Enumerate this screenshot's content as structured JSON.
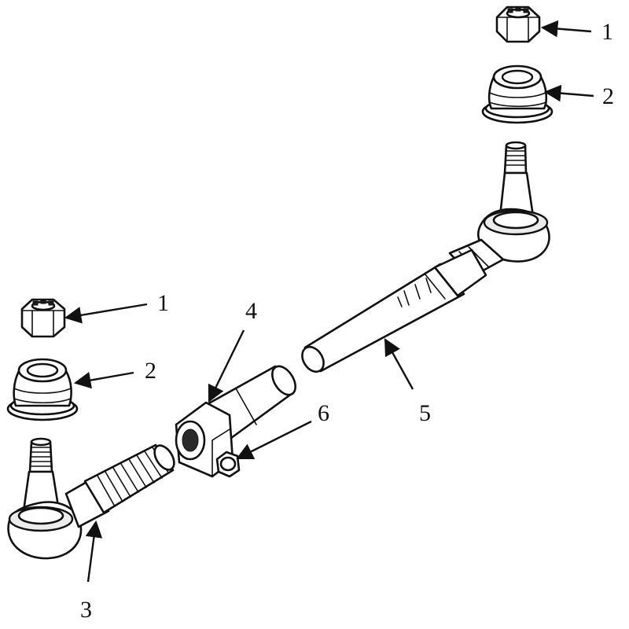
{
  "callouts": {
    "nut_right": "1",
    "boot_right": "2",
    "nut_left": "1",
    "boot_left": "2",
    "tie_rod_end_left": "3",
    "clamp": "4",
    "tube": "5",
    "bolt": "6"
  },
  "colors": {
    "line": "#111111",
    "background": "#ffffff"
  }
}
